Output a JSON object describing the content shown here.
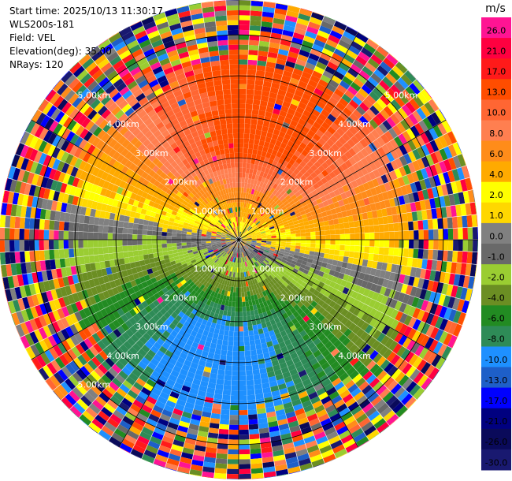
{
  "info": {
    "start_time": "Start time: 2025/10/13 11:30:17",
    "instrument": "WLS200s-181",
    "field": "Field: VEL",
    "elevation": "Elevation(deg): 35.00",
    "nrays": "NRays: 120"
  },
  "chart_data": {
    "type": "heatmap",
    "subtype": "polar PPI (plan position indicator)",
    "field": "VEL",
    "nrays": 120,
    "elevation_deg": 35.0,
    "range_rings_km": [
      1.0,
      2.0,
      3.0,
      4.0,
      5.0
    ],
    "range_ring_labels": [
      "1.00km",
      "2.00km",
      "3.00km",
      "4.00km",
      "5.00km"
    ],
    "max_range_km": 5.85,
    "grid": true,
    "azimuth_lines_deg": [
      0,
      30,
      60,
      90,
      120,
      150
    ],
    "colorbar": {
      "unit": "m/s",
      "placement": "right",
      "tick_labels": [
        "26.0",
        "21.0",
        "17.0",
        "13.0",
        "10.0",
        "8.0",
        "6.0",
        "4.0",
        "2.0",
        "1.0",
        "0.0",
        "-1.0",
        "-2.0",
        "-4.0",
        "-6.0",
        "-8.0",
        "-10.0",
        "-13.0",
        "-17.0",
        "-21.0",
        "-26.0",
        "-30.0"
      ],
      "colors": [
        "#ff1493",
        "#ff0040",
        "#ff1a1a",
        "#ff4d00",
        "#ff6633",
        "#ff7f50",
        "#ff8c1a",
        "#ffaa00",
        "#ffff00",
        "#ffd700",
        "#808080",
        "#696969",
        "#9acd32",
        "#6b8e23",
        "#228b22",
        "#2e8b57",
        "#1e90ff",
        "#1e5fc8",
        "#0000ff",
        "#000080",
        "#0a0a5a",
        "#191970"
      ]
    },
    "approx_velocity_pattern": {
      "north_sector_m_s": [
        10,
        13
      ],
      "northeast_near_m_s": [
        4,
        6
      ],
      "northwest_near_m_s": [
        2,
        4
      ],
      "center_ring_m_s": [
        -1,
        1
      ],
      "south_sector_m_s": [
        -10,
        -8
      ],
      "far_ring": "noise (random colors)"
    }
  }
}
